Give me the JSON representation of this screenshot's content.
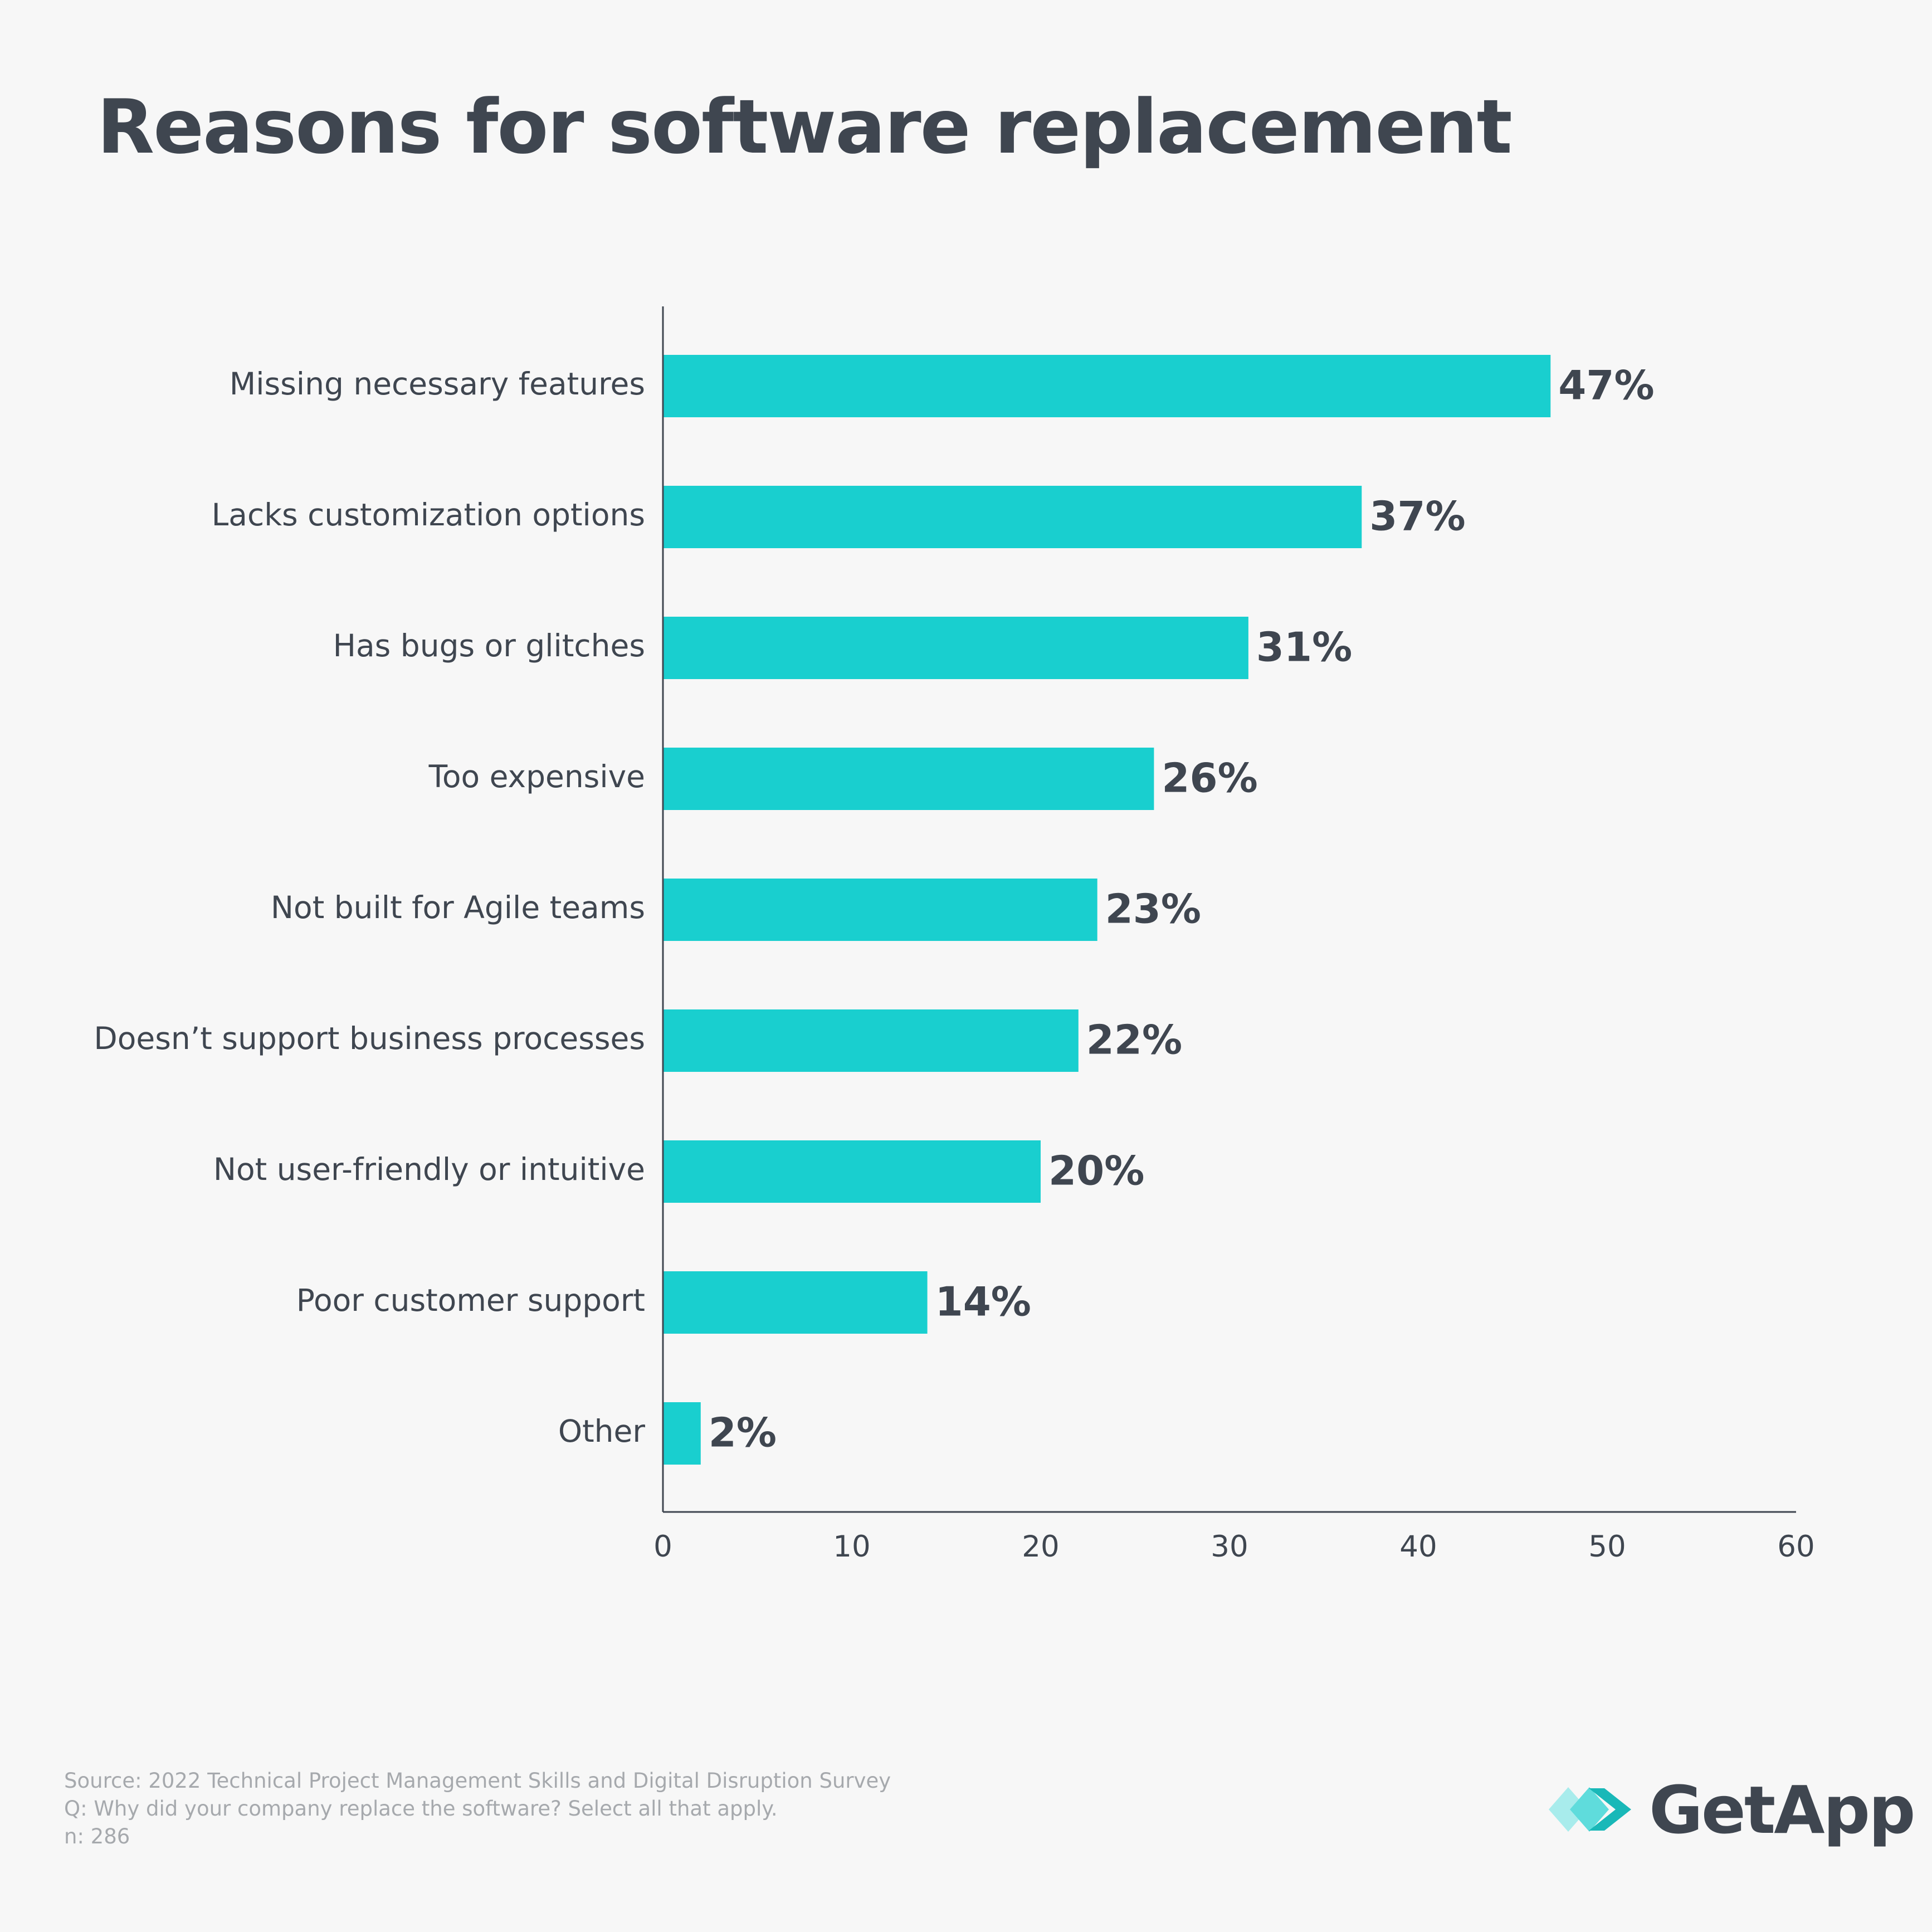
{
  "chart_data": {
    "type": "bar",
    "orientation": "horizontal",
    "title": "Reasons for software replacement",
    "categories": [
      "Missing necessary features",
      "Lacks customization options",
      "Has bugs or glitches",
      "Too expensive",
      "Not built for Agile teams",
      "Doesn’t support business processes",
      "Not user-friendly or intuitive",
      "Poor customer support",
      "Other"
    ],
    "values": [
      47,
      37,
      31,
      26,
      23,
      22,
      20,
      14,
      2
    ],
    "value_labels": [
      "47%",
      "37%",
      "31%",
      "26%",
      "23%",
      "22%",
      "20%",
      "14%",
      "2%"
    ],
    "xlim": [
      0,
      60
    ],
    "xticks": [
      0,
      10,
      20,
      30,
      40,
      50,
      60
    ],
    "xlabel": "",
    "ylabel": "",
    "grid": false,
    "bar_color": "#19cfcf",
    "axis_color": "#3f4650"
  },
  "footer": {
    "source": "Source: 2022 Technical Project Management Skills and Digital Disruption Survey",
    "question": "Q: Why did your company replace the software? Select all that apply.",
    "n": "n: 286"
  },
  "logo": {
    "text": "GetApp",
    "icon": "getapp-chevrons-icon"
  },
  "colors": {
    "background": "#f7f7f7",
    "text": "#3f4650",
    "muted": "#a6a9ad"
  }
}
